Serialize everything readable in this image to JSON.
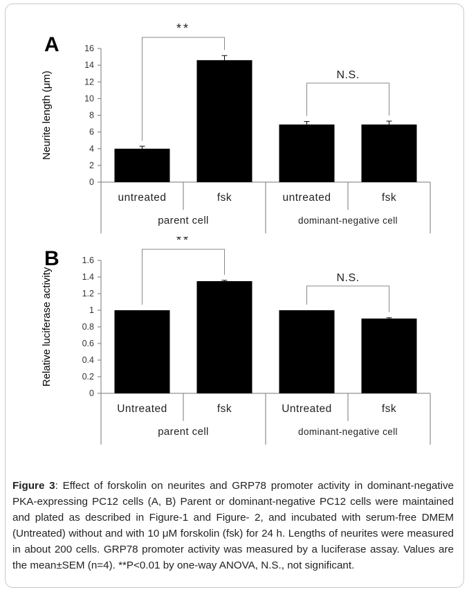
{
  "panels": [
    {
      "panel_label": "A",
      "chart_data": {
        "type": "bar",
        "ylabel": "Neurite length (μm)",
        "ylim": [
          0,
          16
        ],
        "yticks": [
          0,
          2,
          4,
          6,
          8,
          10,
          12,
          14,
          16
        ],
        "categories": [
          "untreated",
          "fsk",
          "untreated",
          "fsk"
        ],
        "groups": [
          "parent cell",
          "dominant-negative cell"
        ],
        "values": [
          4.0,
          14.6,
          6.9,
          6.9
        ],
        "errors": [
          0.3,
          0.55,
          0.35,
          0.4
        ],
        "bar_color": "#000000",
        "annotations": [
          {
            "label": "**",
            "between": [
              0,
              1
            ]
          },
          {
            "label": "N.S.",
            "between": [
              2,
              3
            ]
          }
        ]
      }
    },
    {
      "panel_label": "B",
      "chart_data": {
        "type": "bar",
        "ylabel": "Relative luciferase activity",
        "ylim": [
          0,
          1.6
        ],
        "yticks": [
          0,
          0.2,
          0.4,
          0.6,
          0.8,
          1,
          1.2,
          1.4,
          1.6
        ],
        "categories": [
          "Untreated",
          "fsk",
          "Untreated",
          "fsk"
        ],
        "groups": [
          "parent cell",
          "dominant-negative cell"
        ],
        "values": [
          1.0,
          1.35,
          1.0,
          0.9
        ],
        "errors": [
          0,
          0.01,
          0,
          0.01
        ],
        "bar_color": "#000000",
        "annotations": [
          {
            "label": "**",
            "between": [
              0,
              1
            ]
          },
          {
            "label": "N.S.",
            "between": [
              2,
              3
            ]
          }
        ]
      }
    }
  ],
  "caption": {
    "label": "Figure 3",
    "text": ": Effect of forskolin on neurites and GRP78 promoter activity in dominant-negative PKA-expressing PC12 cells (A, B) Parent or dominant-negative PC12 cells were maintained and plated as described in Figure-1 and Figure- 2, and incubated with serum-free DMEM (Untreated) without and with 10 μM forskolin (fsk) for 24 h. Lengths of neurites were measured in about 200 cells. GRP78 promoter activity was measured by a luciferase assay. Values are the mean±SEM (n=4). **P<0.01 by one-way ANOVA, N.S., not significant."
  }
}
